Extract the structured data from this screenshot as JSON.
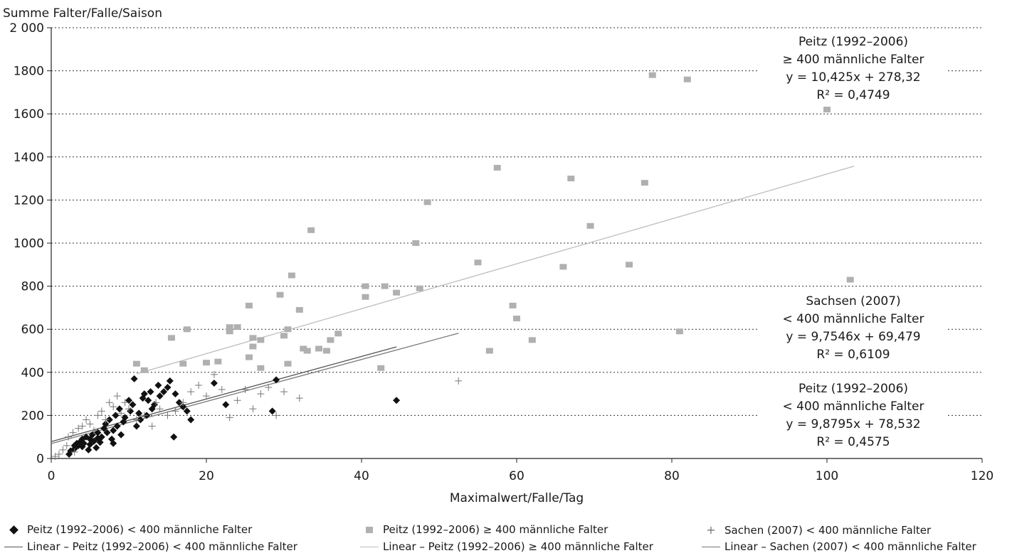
{
  "chart_data": {
    "type": "scatter",
    "ylabel": "Summe Falter/Falle/Saison",
    "xlabel": "Maximalwert/Falle/Tag",
    "xlim": [
      0,
      120
    ],
    "ylim": [
      0,
      2000
    ],
    "x_ticks": [
      "0",
      "20",
      "40",
      "60",
      "80",
      "100",
      "120"
    ],
    "y_ticks": [
      "0",
      "200",
      "400",
      "600",
      "800",
      "1000",
      "1200",
      "1400",
      "1600",
      "1800",
      "2 000"
    ],
    "grid": "horizontal dotted",
    "legend_position": "bottom",
    "series": [
      {
        "name": "Peitz (1992–2006) < 400 männliche Falter",
        "marker": "diamond",
        "color": "#111111",
        "points": [
          [
            2.3,
            20
          ],
          [
            2.5,
            35
          ],
          [
            3,
            45
          ],
          [
            3,
            60
          ],
          [
            3.3,
            70
          ],
          [
            3.5,
            60
          ],
          [
            3.8,
            80
          ],
          [
            4,
            90
          ],
          [
            4,
            55
          ],
          [
            4.2,
            70
          ],
          [
            4.5,
            100
          ],
          [
            4.8,
            40
          ],
          [
            5,
            65
          ],
          [
            5,
            90
          ],
          [
            5.3,
            110
          ],
          [
            5.5,
            80
          ],
          [
            5.8,
            50
          ],
          [
            6,
            95
          ],
          [
            6,
            120
          ],
          [
            6.3,
            75
          ],
          [
            6.5,
            100
          ],
          [
            6.8,
            140
          ],
          [
            7,
            160
          ],
          [
            7.2,
            120
          ],
          [
            7.5,
            180
          ],
          [
            7.8,
            90
          ],
          [
            8,
            70
          ],
          [
            8,
            130
          ],
          [
            8.3,
            200
          ],
          [
            8.5,
            150
          ],
          [
            8.8,
            230
          ],
          [
            9,
            110
          ],
          [
            9.3,
            170
          ],
          [
            9.5,
            190
          ],
          [
            10,
            270
          ],
          [
            10.2,
            220
          ],
          [
            10.5,
            250
          ],
          [
            10.7,
            370
          ],
          [
            11,
            150
          ],
          [
            11.3,
            210
          ],
          [
            11.5,
            180
          ],
          [
            11.8,
            280
          ],
          [
            12,
            300
          ],
          [
            12.3,
            200
          ],
          [
            12.5,
            270
          ],
          [
            12.8,
            310
          ],
          [
            13,
            230
          ],
          [
            13.3,
            250
          ],
          [
            13.8,
            340
          ],
          [
            14,
            290
          ],
          [
            14.5,
            310
          ],
          [
            15,
            330
          ],
          [
            15.3,
            360
          ],
          [
            15.8,
            100
          ],
          [
            16,
            300
          ],
          [
            16.5,
            260
          ],
          [
            17,
            240
          ],
          [
            17.5,
            220
          ],
          [
            18,
            180
          ],
          [
            21,
            350
          ],
          [
            22.5,
            250
          ],
          [
            28.5,
            220
          ],
          [
            29,
            365
          ],
          [
            44.5,
            270
          ]
        ]
      },
      {
        "name": "Peitz (1992–2006) ≥ 400 männliche Falter",
        "marker": "square",
        "color": "#b0b0b0",
        "points": [
          [
            11,
            440
          ],
          [
            12,
            410
          ],
          [
            15.5,
            560
          ],
          [
            17,
            440
          ],
          [
            17.5,
            600
          ],
          [
            20,
            445
          ],
          [
            21.5,
            450
          ],
          [
            23,
            610
          ],
          [
            23,
            590
          ],
          [
            24,
            610
          ],
          [
            25.5,
            470
          ],
          [
            25.5,
            710
          ],
          [
            26,
            520
          ],
          [
            26,
            560
          ],
          [
            27,
            420
          ],
          [
            27,
            550
          ],
          [
            29.5,
            760
          ],
          [
            30,
            570
          ],
          [
            30.5,
            600
          ],
          [
            30.5,
            440
          ],
          [
            31,
            850
          ],
          [
            32,
            690
          ],
          [
            32.5,
            510
          ],
          [
            33,
            500
          ],
          [
            33.5,
            1060
          ],
          [
            34.5,
            510
          ],
          [
            35.5,
            500
          ],
          [
            36,
            550
          ],
          [
            37,
            580
          ],
          [
            40.5,
            800
          ],
          [
            40.5,
            750
          ],
          [
            42.5,
            420
          ],
          [
            43,
            800
          ],
          [
            44.5,
            770
          ],
          [
            47,
            1000
          ],
          [
            47.5,
            790
          ],
          [
            48.5,
            1190
          ],
          [
            55,
            910
          ],
          [
            56.5,
            500
          ],
          [
            57.5,
            1350
          ],
          [
            59.5,
            710
          ],
          [
            60,
            650
          ],
          [
            62,
            550
          ],
          [
            66,
            890
          ],
          [
            67,
            1300
          ],
          [
            69.5,
            1080
          ],
          [
            74.5,
            900
          ],
          [
            76.5,
            1280
          ],
          [
            77.5,
            1780
          ],
          [
            81,
            590
          ],
          [
            82,
            1760
          ],
          [
            100,
            1620
          ],
          [
            103,
            830
          ]
        ]
      },
      {
        "name": "Sachen (2007) < 400 männliche Falter",
        "marker": "plus",
        "color": "#777777",
        "points": [
          [
            0.5,
            10
          ],
          [
            1,
            20
          ],
          [
            1.5,
            40
          ],
          [
            2,
            60
          ],
          [
            2.2,
            100
          ],
          [
            2.8,
            120
          ],
          [
            3,
            30
          ],
          [
            3.5,
            140
          ],
          [
            4,
            150
          ],
          [
            4.5,
            180
          ],
          [
            5,
            160
          ],
          [
            5.5,
            130
          ],
          [
            6,
            200
          ],
          [
            6.5,
            220
          ],
          [
            7,
            180
          ],
          [
            7.5,
            260
          ],
          [
            8,
            240
          ],
          [
            8.5,
            290
          ],
          [
            9,
            210
          ],
          [
            9.5,
            260
          ],
          [
            10,
            230
          ],
          [
            11,
            180
          ],
          [
            12,
            200
          ],
          [
            13,
            150
          ],
          [
            13.5,
            260
          ],
          [
            14,
            230
          ],
          [
            15,
            200
          ],
          [
            16,
            220
          ],
          [
            17,
            260
          ],
          [
            18,
            310
          ],
          [
            19,
            340
          ],
          [
            20,
            290
          ],
          [
            21,
            390
          ],
          [
            22,
            320
          ],
          [
            23,
            190
          ],
          [
            24,
            270
          ],
          [
            25,
            320
          ],
          [
            26,
            230
          ],
          [
            27,
            300
          ],
          [
            28,
            330
          ],
          [
            29,
            200
          ],
          [
            30,
            310
          ],
          [
            32,
            280
          ],
          [
            52.5,
            360
          ]
        ]
      }
    ],
    "trendlines": [
      {
        "name": "Linear – Peitz (1992–2006) < 400 männliche Falter",
        "slope": 9.8795,
        "intercept": 78.532,
        "x_range": [
          0,
          44.5
        ],
        "color": "#555555"
      },
      {
        "name": "Linear – Peitz (1992–2006) ≥ 400 männliche Falter",
        "slope": 10.425,
        "intercept": 278.32,
        "x_range": [
          11,
          103.5
        ],
        "color": "#bdbdbd"
      },
      {
        "name": "Linear – Sachen (2007) < 400 männliche Falter",
        "slope": 9.7546,
        "intercept": 69.479,
        "x_range": [
          0,
          52.5
        ],
        "color": "#777777"
      }
    ],
    "annotations": [
      {
        "lines": [
          "Peitz (1992–2006)",
          "≥ 400 männliche Falter",
          "y = 10,425x + 278,32",
          "R² = 0,4749"
        ]
      },
      {
        "lines": [
          "Sachsen (2007)",
          "< 400 männliche Falter",
          "y = 9,7546x + 69,479",
          "R² = 0,6109"
        ]
      },
      {
        "lines": [
          "Peitz (1992–2006)",
          "< 400 männliche Falter",
          "y = 9,8795x + 78,532",
          "R² = 0,4575"
        ]
      }
    ]
  },
  "legend": {
    "row1": [
      "Peitz (1992–2006) < 400 männliche Falter",
      "Peitz (1992–2006) ≥ 400 männliche Falter",
      "Sachen (2007) < 400 männliche Falter"
    ],
    "row2": [
      "Linear – Peitz (1992–2006) < 400 männliche Falter",
      "Linear – Peitz (1992–2006) ≥ 400 männliche Falter",
      "Linear – Sachen (2007) < 400 männliche Falter"
    ]
  }
}
